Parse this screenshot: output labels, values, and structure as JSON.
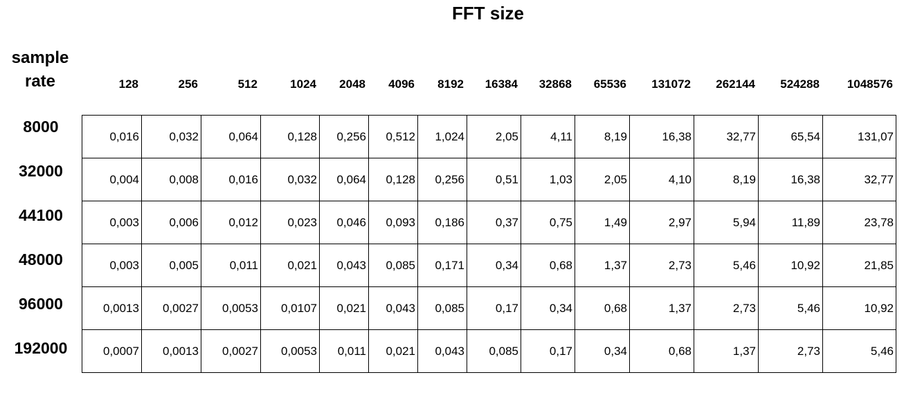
{
  "title": "FFT size",
  "corner_label": {
    "line1": "sample",
    "line2": "rate"
  },
  "fft_sizes": [
    "128",
    "256",
    "512",
    "1024",
    "2048",
    "4096",
    "8192",
    "16384",
    "32868",
    "65536",
    "131072",
    "262144",
    "524288",
    "1048576"
  ],
  "rows": [
    {
      "sample_rate": "8000",
      "values": [
        "0,016",
        "0,032",
        "0,064",
        "0,128",
        "0,256",
        "0,512",
        "1,024",
        "2,05",
        "4,11",
        "8,19",
        "16,38",
        "32,77",
        "65,54",
        "131,07"
      ]
    },
    {
      "sample_rate": "32000",
      "values": [
        "0,004",
        "0,008",
        "0,016",
        "0,032",
        "0,064",
        "0,128",
        "0,256",
        "0,51",
        "1,03",
        "2,05",
        "4,10",
        "8,19",
        "16,38",
        "32,77"
      ]
    },
    {
      "sample_rate": "44100",
      "values": [
        "0,003",
        "0,006",
        "0,012",
        "0,023",
        "0,046",
        "0,093",
        "0,186",
        "0,37",
        "0,75",
        "1,49",
        "2,97",
        "5,94",
        "11,89",
        "23,78"
      ]
    },
    {
      "sample_rate": "48000",
      "values": [
        "0,003",
        "0,005",
        "0,011",
        "0,021",
        "0,043",
        "0,085",
        "0,171",
        "0,34",
        "0,68",
        "1,37",
        "2,73",
        "5,46",
        "10,92",
        "21,85"
      ]
    },
    {
      "sample_rate": "96000",
      "values": [
        "0,0013",
        "0,0027",
        "0,0053",
        "0,0107",
        "0,021",
        "0,043",
        "0,085",
        "0,17",
        "0,34",
        "0,68",
        "1,37",
        "2,73",
        "5,46",
        "10,92"
      ]
    },
    {
      "sample_rate": "192000",
      "values": [
        "0,0007",
        "0,0013",
        "0,0027",
        "0,0053",
        "0,011",
        "0,021",
        "0,043",
        "0,085",
        "0,17",
        "0,34",
        "0,68",
        "1,37",
        "2,73",
        "5,46"
      ]
    }
  ]
}
